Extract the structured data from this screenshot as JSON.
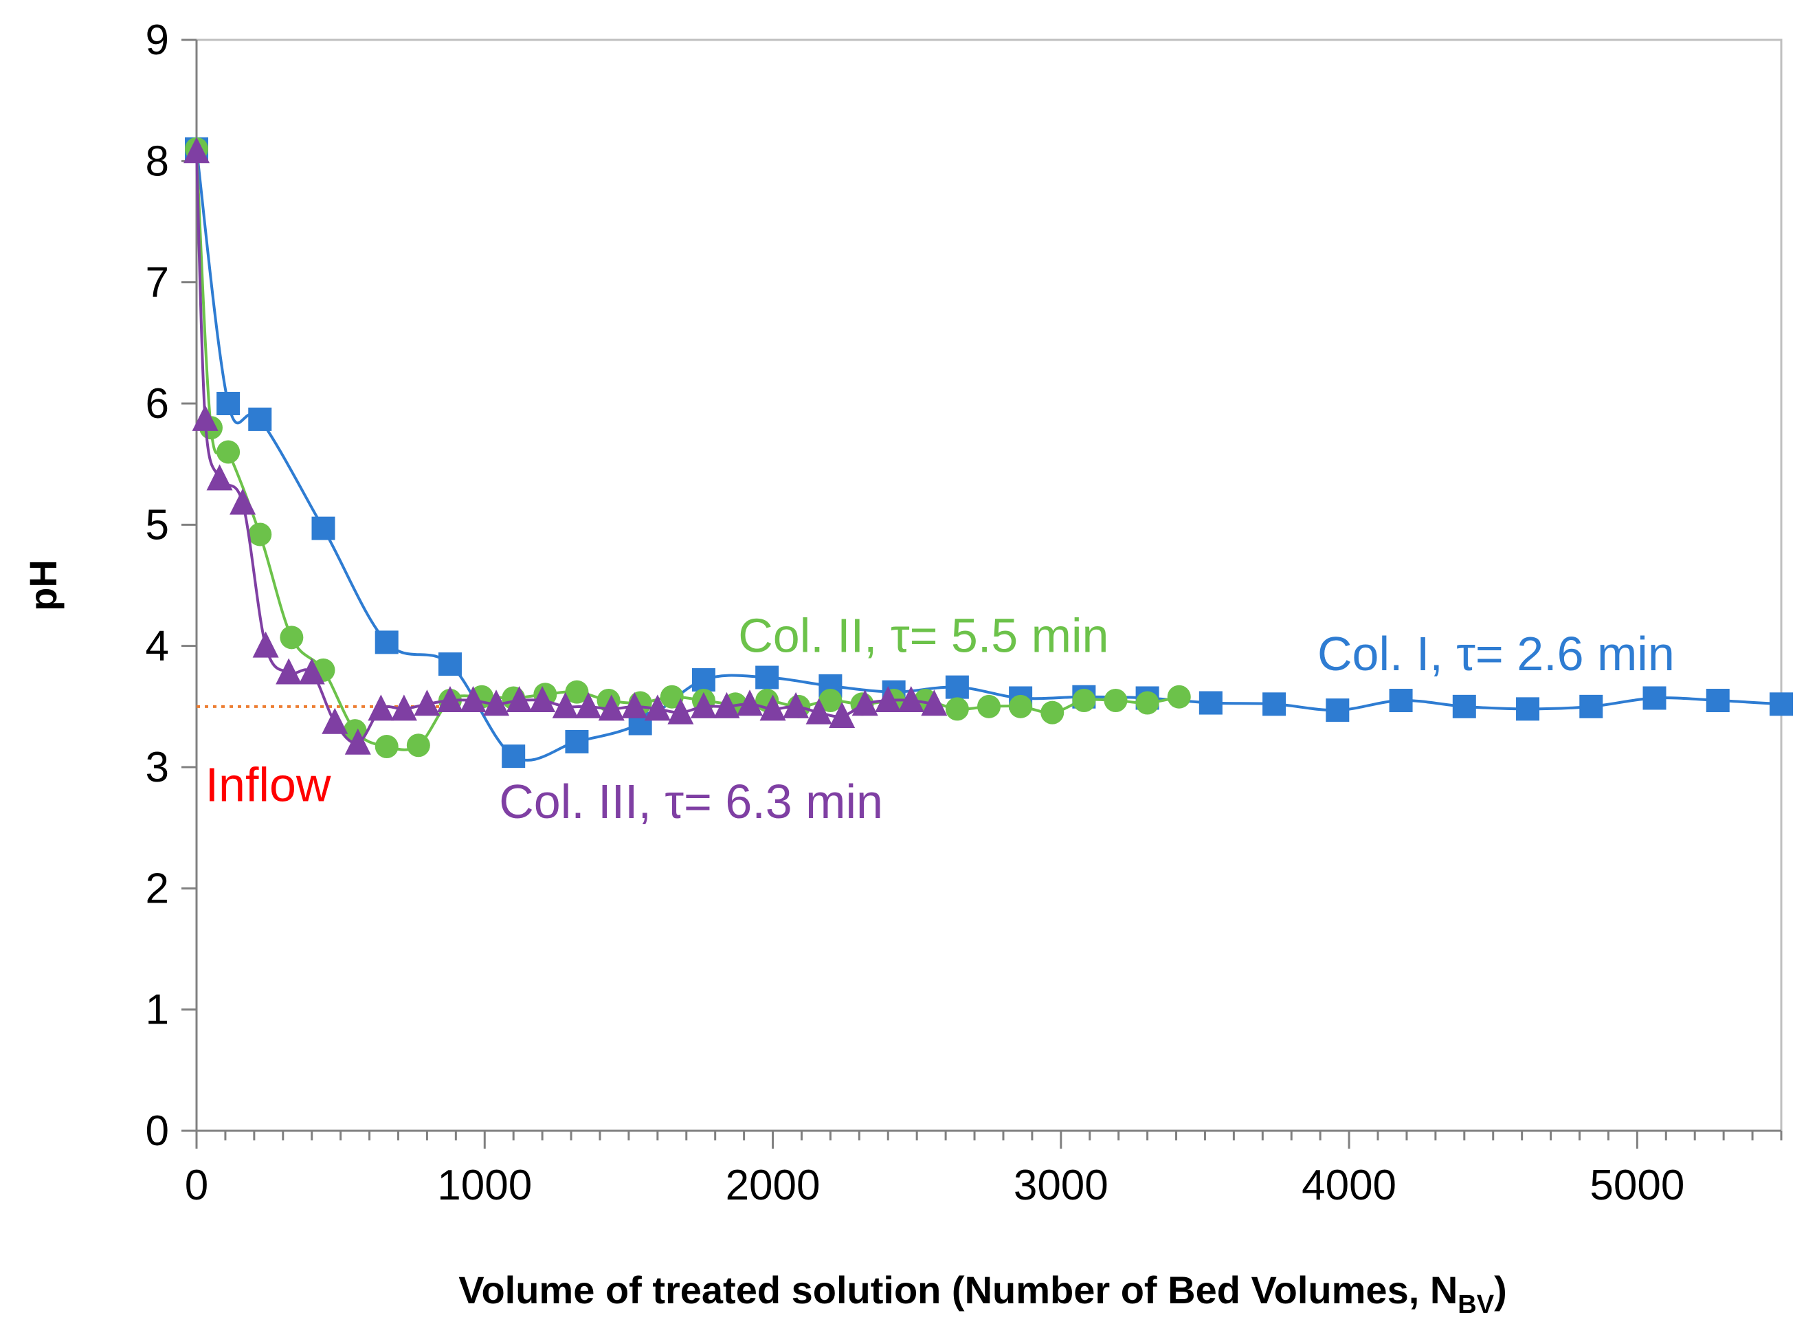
{
  "chart_data": {
    "type": "line",
    "title": "",
    "xlabel_main": "Volume of treated solution  (Number of Bed Volumes, N",
    "xlabel_sub": "BV",
    "xlabel_close": ")",
    "ylabel": "pH",
    "xlim": [
      0,
      5500
    ],
    "ylim": [
      0,
      9
    ],
    "x_ticks": [
      "0",
      "1000",
      "2000",
      "3000",
      "4000",
      "5000"
    ],
    "x_tick_values": [
      0,
      1000,
      2000,
      3000,
      4000,
      5000
    ],
    "x_minor_step": 100,
    "y_ticks": [
      "0",
      "1",
      "2",
      "3",
      "4",
      "5",
      "6",
      "7",
      "8",
      "9"
    ],
    "y_tick_values": [
      0,
      1,
      2,
      3,
      4,
      5,
      6,
      7,
      8,
      9
    ],
    "grid": false,
    "reference_line": {
      "name": "Inflow",
      "y": 3.5,
      "color": "#ED7D31"
    },
    "series": [
      {
        "name": "Col. I, τ= 2.6 min",
        "color": "#2E7CD2",
        "marker": "square",
        "x": [
          0,
          110,
          220,
          440,
          660,
          880,
          1100,
          1320,
          1540,
          1760,
          1980,
          2200,
          2420,
          2640,
          2860,
          3080,
          3300,
          3520,
          3740,
          3960,
          4180,
          4400,
          4620,
          4840,
          5060,
          5280,
          5500
        ],
        "y": [
          8.1,
          6.0,
          5.87,
          4.97,
          4.03,
          3.85,
          3.09,
          3.21,
          3.36,
          3.72,
          3.74,
          3.67,
          3.62,
          3.66,
          3.57,
          3.58,
          3.57,
          3.53,
          3.52,
          3.47,
          3.55,
          3.5,
          3.48,
          3.5,
          3.57,
          3.55,
          3.52
        ]
      },
      {
        "name": "Col. II, τ= 5.5 min",
        "color": "#6CC24A",
        "marker": "circle",
        "x": [
          0,
          50,
          110,
          220,
          330,
          440,
          550,
          660,
          770,
          880,
          990,
          1100,
          1210,
          1320,
          1430,
          1540,
          1650,
          1760,
          1870,
          1980,
          2090,
          2200,
          2310,
          2420,
          2530,
          2640,
          2750,
          2860,
          2970,
          3080,
          3190,
          3300,
          3410
        ],
        "y": [
          8.1,
          5.8,
          5.6,
          4.92,
          4.07,
          3.8,
          3.3,
          3.17,
          3.18,
          3.55,
          3.58,
          3.57,
          3.6,
          3.62,
          3.55,
          3.53,
          3.58,
          3.55,
          3.52,
          3.55,
          3.5,
          3.55,
          3.52,
          3.55,
          3.55,
          3.48,
          3.5,
          3.5,
          3.45,
          3.55,
          3.55,
          3.53,
          3.58
        ]
      },
      {
        "name": "Col. III,  τ= 6.3 min",
        "color": "#7F3FA3",
        "marker": "triangle",
        "x": [
          0,
          30,
          80,
          160,
          240,
          320,
          400,
          480,
          560,
          640,
          720,
          800,
          880,
          960,
          1040,
          1120,
          1200,
          1280,
          1360,
          1440,
          1520,
          1600,
          1680,
          1760,
          1840,
          1920,
          2000,
          2080,
          2160,
          2240,
          2320,
          2400,
          2480,
          2560
        ],
        "y": [
          8.08,
          5.87,
          5.38,
          5.18,
          4.0,
          3.78,
          3.78,
          3.37,
          3.2,
          3.48,
          3.48,
          3.52,
          3.55,
          3.55,
          3.52,
          3.55,
          3.55,
          3.5,
          3.5,
          3.48,
          3.5,
          3.48,
          3.45,
          3.5,
          3.5,
          3.52,
          3.48,
          3.5,
          3.45,
          3.42,
          3.52,
          3.55,
          3.55,
          3.52
        ]
      }
    ],
    "annotations": [
      {
        "text": "Inflow",
        "color": "#FF0000",
        "x": 30,
        "y": 2.72
      },
      {
        "text": "Col. II, τ= 5.5 min",
        "color": "#6CC24A",
        "x": 1880,
        "y": 3.95
      },
      {
        "text": "Col. I, τ= 2.6 min",
        "color": "#2E7CD2",
        "x": 3890,
        "y": 3.8
      },
      {
        "text": "Col. III,  τ= 6.3 min",
        "color": "#7F3FA3",
        "x": 1050,
        "y": 2.58
      }
    ]
  }
}
